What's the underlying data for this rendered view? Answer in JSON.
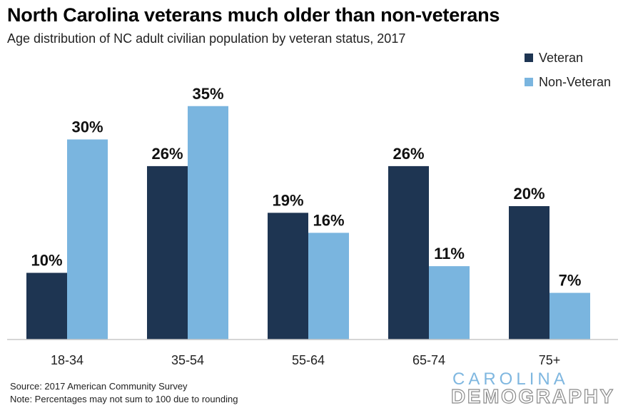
{
  "title": "North Carolina veterans much older than non-veterans",
  "subtitle": "Age distribution of NC adult civilian population by veteran status, 2017",
  "source_lines": [
    "Source: 2017 American Community Survey",
    "Note: Percentages may not sum to 100 due to rounding"
  ],
  "logo": {
    "line1": "CAROLINA",
    "line2": "DEMOGRAPHY"
  },
  "colors": {
    "veteran": "#1e3552",
    "non_veteran": "#7ab5df",
    "axis": "#c8c8c8"
  },
  "chart_data": {
    "type": "bar",
    "categories": [
      "18-34",
      "35-54",
      "55-64",
      "65-74",
      "75+"
    ],
    "series": [
      {
        "name": "Veteran",
        "values": [
          10,
          26,
          19,
          26,
          20
        ],
        "labels": [
          "10%",
          "26%",
          "19%",
          "26%",
          "20%"
        ]
      },
      {
        "name": "Non-Veteran",
        "values": [
          30,
          35,
          16,
          11,
          7
        ],
        "labels": [
          "30%",
          "35%",
          "16%",
          "11%",
          "7%"
        ]
      }
    ],
    "ylim": [
      0,
      40
    ],
    "grid": false,
    "legend": "top-right"
  }
}
